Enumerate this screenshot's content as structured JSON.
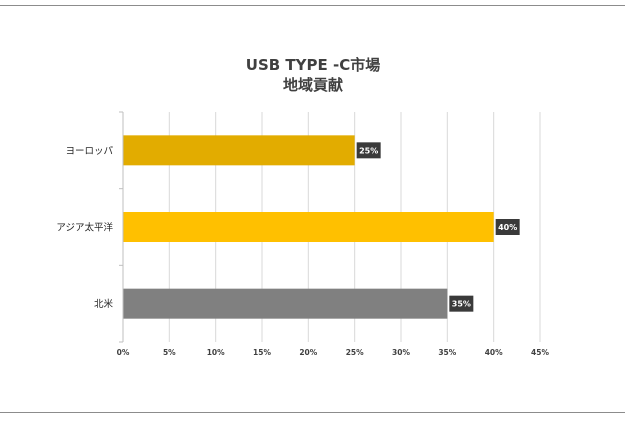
{
  "chart_data": {
    "type": "bar",
    "orientation": "horizontal",
    "title_lines": [
      "USB TYPE -C市場",
      "地域貢献"
    ],
    "xlabel": "",
    "ylabel": "",
    "categories": [
      "ヨーロッパ",
      "アジア太平洋",
      "北米"
    ],
    "values": [
      25,
      40,
      35
    ],
    "data_labels": [
      "25%",
      "40%",
      "35%"
    ],
    "colors": [
      "#e2ac00",
      "#ffc000",
      "#808080"
    ],
    "xlim": [
      0,
      45
    ],
    "x_ticks": [
      0,
      5,
      10,
      15,
      20,
      25,
      30,
      35,
      40,
      45
    ],
    "x_tick_labels": [
      "0%",
      "5%",
      "10%",
      "15%",
      "20%",
      "25%",
      "30%",
      "35%",
      "40%",
      "45%"
    ],
    "grid": true,
    "legend": "none"
  }
}
